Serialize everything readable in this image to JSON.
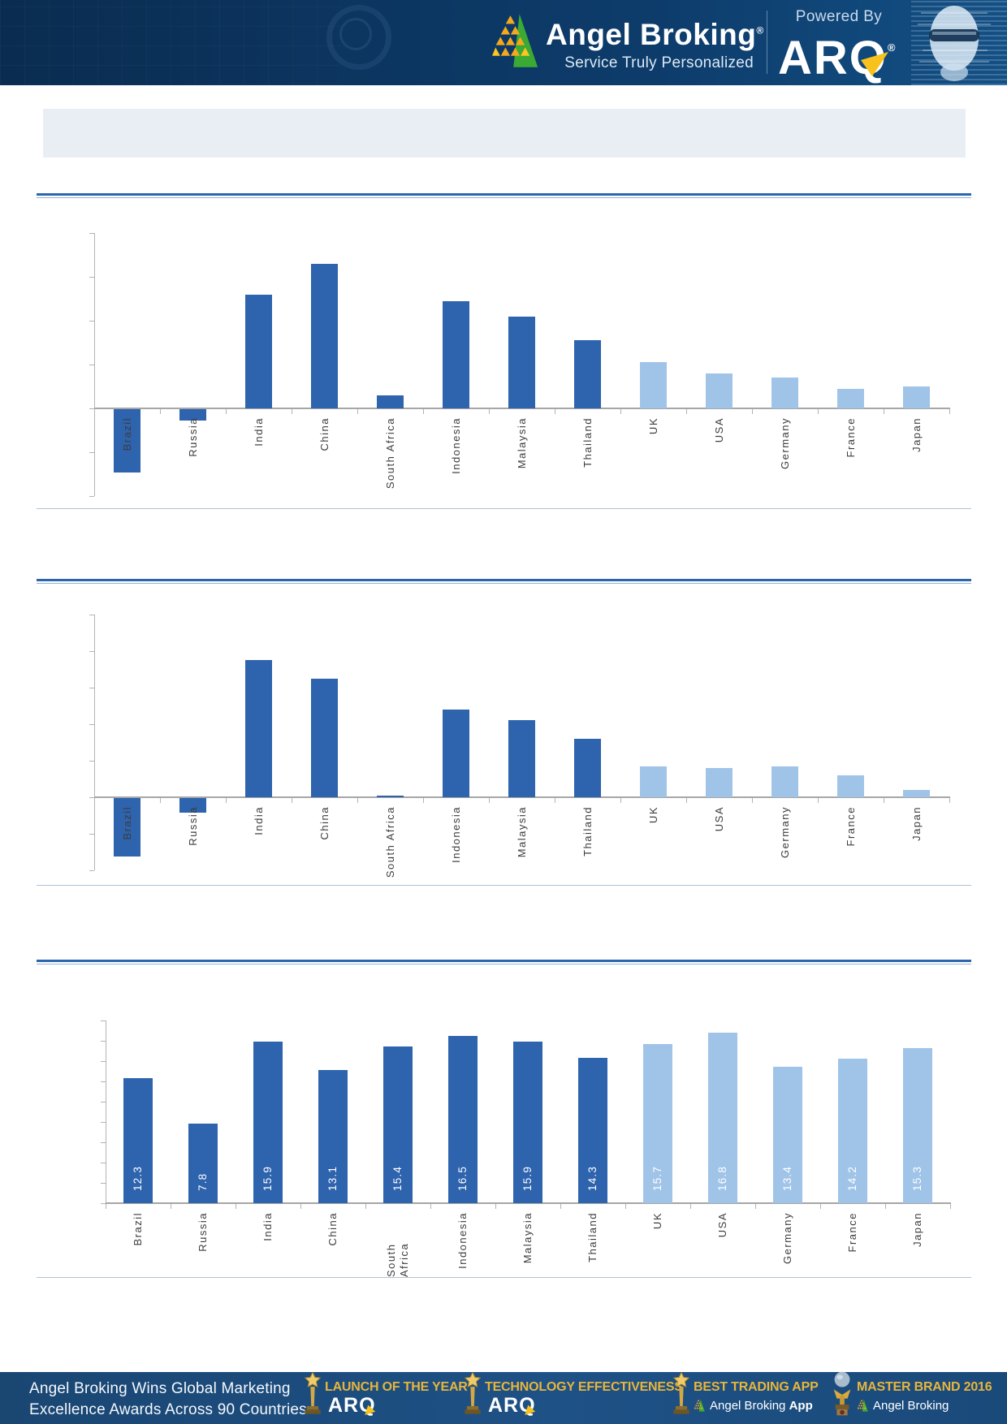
{
  "header": {
    "brand": "Angel Broking",
    "registered": "®",
    "tagline": "Service Truly Personalized",
    "powered_by": "Powered By",
    "product": "ARQ",
    "product_registered": "®",
    "background_color": "#0d3c6b"
  },
  "title_bar": {
    "text": ""
  },
  "chart_data": [
    {
      "type": "bar",
      "title": "",
      "categories": [
        "Brazil",
        "Russia",
        "India",
        "China",
        "South Africa",
        "Indonesia",
        "Malaysia",
        "Thailand",
        "UK",
        "USA",
        "Germany",
        "France",
        "Japan"
      ],
      "values": [
        -2.9,
        -0.5,
        5.2,
        6.6,
        0.6,
        4.9,
        4.2,
        3.1,
        2.1,
        1.6,
        1.4,
        0.9,
        1.0
      ],
      "xlabel": "",
      "ylabel": "",
      "ylim": [
        -4,
        8
      ],
      "ytick_step": 2,
      "grid": false,
      "legend": false,
      "axis_numbers_visible": false,
      "value_labels_visible": false,
      "bar_color_dark": "#2e63ae",
      "bar_color_light": "#a0c4e8",
      "light_from_index": 8
    },
    {
      "type": "bar",
      "title": "",
      "categories": [
        "Brazil",
        "Russia",
        "India",
        "China",
        "South Africa",
        "Indonesia",
        "Malaysia",
        "Thailand",
        "UK",
        "USA",
        "Germany",
        "France",
        "Japan"
      ],
      "values": [
        -3.2,
        -0.8,
        7.5,
        6.5,
        0.1,
        4.8,
        4.2,
        3.2,
        1.7,
        1.6,
        1.7,
        1.2,
        0.4
      ],
      "xlabel": "",
      "ylabel": "",
      "ylim": [
        -4,
        10
      ],
      "ytick_step": 2,
      "grid": false,
      "legend": false,
      "axis_numbers_visible": false,
      "value_labels_visible": false,
      "bar_color_dark": "#2e63ae",
      "bar_color_light": "#a0c4e8",
      "light_from_index": 8
    },
    {
      "type": "bar",
      "title": "",
      "categories": [
        "Brazil",
        "Russia",
        "India",
        "China",
        "South Africa",
        "Indonesia",
        "Malaysia",
        "Thailand",
        "UK",
        "USA",
        "Germany",
        "France",
        "Japan"
      ],
      "values": [
        12.3,
        7.8,
        15.9,
        13.1,
        15.4,
        16.5,
        15.9,
        14.3,
        15.7,
        16.8,
        13.4,
        14.2,
        15.3
      ],
      "xlabel": "",
      "ylabel": "",
      "ylim": [
        0,
        18
      ],
      "ytick_step": 2,
      "grid": false,
      "legend": false,
      "axis_numbers_visible": false,
      "value_labels_visible": true,
      "value_label_color": "#ffffff",
      "bar_color_dark": "#2e63ae",
      "bar_color_light": "#a0c4e8",
      "light_from_index": 8
    }
  ],
  "footer": {
    "headline_line1": "Angel Broking Wins Global Marketing",
    "headline_line2": "Excellence Awards Across 90 Countries",
    "accent_gold": "#e7b53c",
    "awards": [
      {
        "title": "LAUNCH OF THE YEAR",
        "subtitle": "ARQ",
        "icon": "star-trophy"
      },
      {
        "title": "TECHNOLOGY EFFECTIVENESS",
        "subtitle": "ARQ",
        "icon": "star-trophy"
      },
      {
        "title": "BEST TRADING APP",
        "subtitle": "Angel Broking",
        "subtitle_bold": "App",
        "icon": "star-trophy"
      },
      {
        "title": "MASTER BRAND 2016",
        "subtitle": "Angel Broking",
        "subtitle_bold": "",
        "icon": "globe-trophy"
      }
    ]
  }
}
